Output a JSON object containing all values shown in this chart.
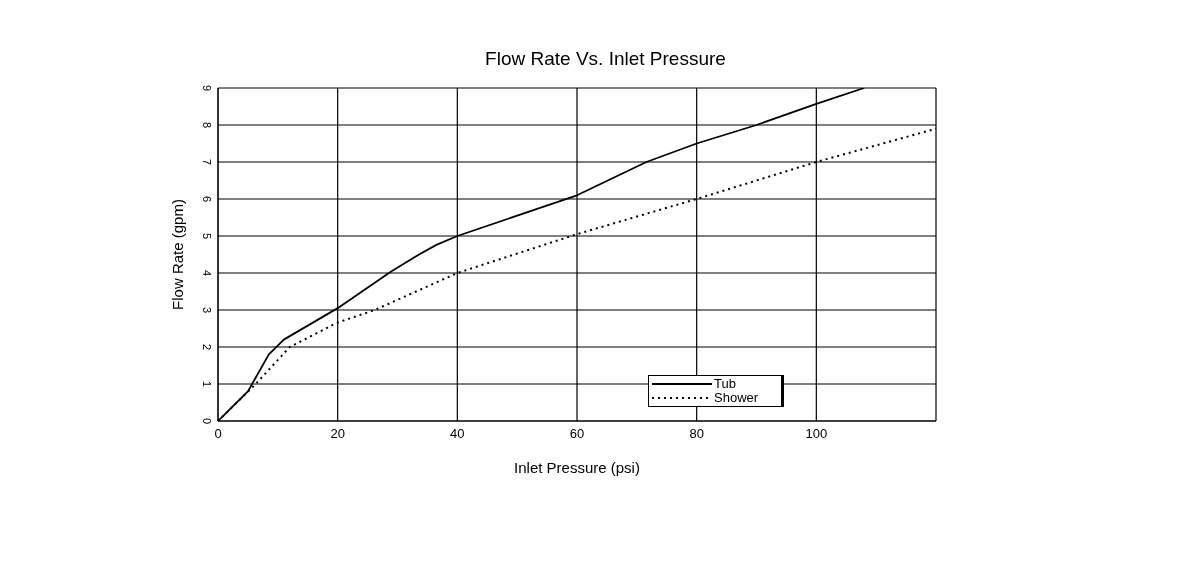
{
  "chart_data": {
    "type": "line",
    "title": "Flow Rate Vs. Inlet Pressure",
    "xlabel": "Inlet Pressure (psi)",
    "ylabel": "Flow Rate (gpm)",
    "xlim": [
      0,
      120
    ],
    "xticks": [
      0,
      20,
      40,
      60,
      80,
      100
    ],
    "ylim": [
      0,
      9
    ],
    "yticks": [
      0,
      1,
      2,
      3,
      4,
      5,
      6,
      7,
      8,
      9
    ],
    "grid": true,
    "legend": "bottom right",
    "marker": "none",
    "series": [
      {
        "name": "Tub",
        "color": "#000000",
        "line_style": "solid",
        "x": [
          0,
          5,
          8.5,
          11,
          20,
          29,
          33.6,
          36.5,
          40,
          50,
          60,
          71.6,
          80,
          90,
          100,
          108
        ],
        "values": [
          0,
          0.8,
          1.8,
          2.2,
          3.05,
          4.05,
          4.5,
          4.76,
          5,
          5.55,
          6.1,
          7,
          7.5,
          8,
          8.57,
          9
        ]
      },
      {
        "name": "Shower",
        "color": "#000000",
        "line_style": "dotted",
        "x": [
          0,
          6.3,
          12,
          19.8,
          26.2,
          40,
          60,
          80,
          100,
          120
        ],
        "values": [
          0,
          1,
          2,
          2.65,
          3,
          4,
          5.05,
          6,
          7,
          7.9
        ]
      }
    ]
  }
}
